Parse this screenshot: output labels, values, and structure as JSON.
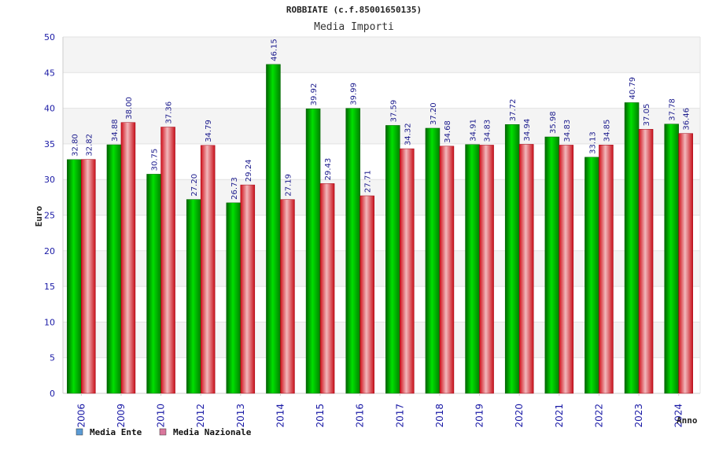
{
  "chart_data": {
    "type": "bar",
    "title": "ROBBIATE (c.f.85001650135)",
    "subtitle": "Media Importi",
    "xlabel": "Anno",
    "ylabel": "Euro",
    "ylim": [
      0,
      50
    ],
    "yticks": [
      0,
      5,
      10,
      15,
      20,
      25,
      30,
      35,
      40,
      45,
      50
    ],
    "grid": true,
    "legend_position": "bottom-left",
    "categories": [
      "2006",
      "2009",
      "2010",
      "2012",
      "2013",
      "2014",
      "2015",
      "2016",
      "2017",
      "2018",
      "2019",
      "2020",
      "2021",
      "2022",
      "2023",
      "2024"
    ],
    "series": [
      {
        "name": "Media Ente",
        "bar_color": "#00c000",
        "legend_color": "#5b9bd5",
        "values": [
          32.8,
          34.88,
          30.75,
          27.2,
          26.73,
          46.15,
          39.92,
          39.99,
          37.59,
          37.2,
          34.91,
          37.72,
          35.98,
          33.13,
          40.79,
          37.78
        ],
        "labels": [
          "32.80",
          "34.88",
          "30.75",
          "27.20",
          "26.73",
          "46.15",
          "39.92",
          "39.99",
          "37.59",
          "37.20",
          "34.91",
          "37.72",
          "35.98",
          "33.13",
          "40.79",
          "37.78"
        ]
      },
      {
        "name": "Media Nazionale",
        "bar_color": "#e8202a",
        "legend_color": "#d9779c",
        "values": [
          32.82,
          38.0,
          37.36,
          34.79,
          29.24,
          27.19,
          29.43,
          27.71,
          34.32,
          34.68,
          34.83,
          34.94,
          34.83,
          34.85,
          37.05,
          36.46
        ],
        "labels": [
          "32.82",
          "38.00",
          "37.36",
          "34.79",
          "29.24",
          "27.19",
          "29.43",
          "27.71",
          "34.32",
          "34.68",
          "34.83",
          "34.94",
          "34.83",
          "34.85",
          "37.05",
          "36.46"
        ]
      }
    ]
  }
}
